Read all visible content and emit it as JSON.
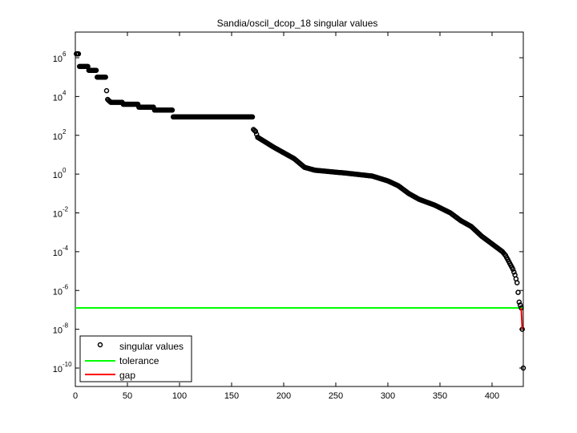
{
  "chart_data": {
    "type": "scatter",
    "title": "Sandia/oscil_dcop_18 singular values",
    "xlabel": "",
    "ylabel": "",
    "xlim": [
      0,
      430
    ],
    "ylim_log10": [
      -11,
      7.3
    ],
    "yscale": "log",
    "grid": false,
    "legend_position": "lower left",
    "x_ticks": [
      0,
      50,
      100,
      150,
      200,
      250,
      300,
      350,
      400
    ],
    "y_ticks": [
      {
        "base": "10",
        "exp": "6",
        "log10": 6
      },
      {
        "base": "10",
        "exp": "4",
        "log10": 4
      },
      {
        "base": "10",
        "exp": "2",
        "log10": 2
      },
      {
        "base": "10",
        "exp": "0",
        "log10": 0
      },
      {
        "base": "10",
        "exp": "-2",
        "log10": -2
      },
      {
        "base": "10",
        "exp": "-4",
        "log10": -4
      },
      {
        "base": "10",
        "exp": "-6",
        "log10": -6
      },
      {
        "base": "10",
        "exp": "-8",
        "log10": -8
      },
      {
        "base": "10",
        "exp": "-10",
        "log10": -10
      }
    ],
    "series": [
      {
        "name": "singular values",
        "marker": "circle-open",
        "color": "#000000",
        "n_points": 430,
        "log10_profile_index_value": [
          [
            1,
            6.2
          ],
          [
            3,
            6.2
          ],
          [
            4,
            5.55
          ],
          [
            12,
            5.55
          ],
          [
            13,
            5.35
          ],
          [
            20,
            5.35
          ],
          [
            21,
            5.0
          ],
          [
            29,
            5.0
          ],
          [
            30,
            4.3
          ],
          [
            31,
            3.85
          ],
          [
            34,
            3.7
          ],
          [
            45,
            3.7
          ],
          [
            46,
            3.6
          ],
          [
            60,
            3.6
          ],
          [
            61,
            3.45
          ],
          [
            75,
            3.45
          ],
          [
            76,
            3.3
          ],
          [
            93,
            3.3
          ],
          [
            94,
            2.95
          ],
          [
            170,
            2.95
          ],
          [
            171,
            2.3
          ],
          [
            173,
            2.2
          ],
          [
            175,
            1.9
          ],
          [
            190,
            1.4
          ],
          [
            210,
            0.8
          ],
          [
            220,
            0.35
          ],
          [
            230,
            0.2
          ],
          [
            260,
            0.05
          ],
          [
            285,
            -0.1
          ],
          [
            300,
            -0.35
          ],
          [
            310,
            -0.6
          ],
          [
            320,
            -1.0
          ],
          [
            330,
            -1.3
          ],
          [
            345,
            -1.6
          ],
          [
            360,
            -2.0
          ],
          [
            370,
            -2.4
          ],
          [
            380,
            -2.7
          ],
          [
            390,
            -3.2
          ],
          [
            400,
            -3.6
          ],
          [
            410,
            -4.0
          ],
          [
            413,
            -4.2
          ],
          [
            415,
            -4.4
          ],
          [
            418,
            -4.7
          ],
          [
            420,
            -4.9
          ],
          [
            422,
            -5.2
          ],
          [
            424,
            -5.6
          ],
          [
            426,
            -6.6
          ],
          [
            427,
            -6.75
          ],
          [
            428,
            -6.9
          ],
          [
            429,
            -8.0
          ],
          [
            430,
            -10.0
          ]
        ]
      },
      {
        "name": "tolerance",
        "type": "hline",
        "color": "#00ff00",
        "log10_value": -6.9
      },
      {
        "name": "gap",
        "type": "line",
        "color": "#ff0000",
        "points": [
          [
            428,
            -6.9
          ],
          [
            429,
            -8.0
          ]
        ]
      }
    ]
  },
  "legend": {
    "items": [
      {
        "label": "singular values",
        "kind": "marker",
        "color": "#000000"
      },
      {
        "label": "tolerance",
        "kind": "line",
        "color": "#00ff00"
      },
      {
        "label": "gap",
        "kind": "line",
        "color": "#ff0000"
      }
    ]
  }
}
